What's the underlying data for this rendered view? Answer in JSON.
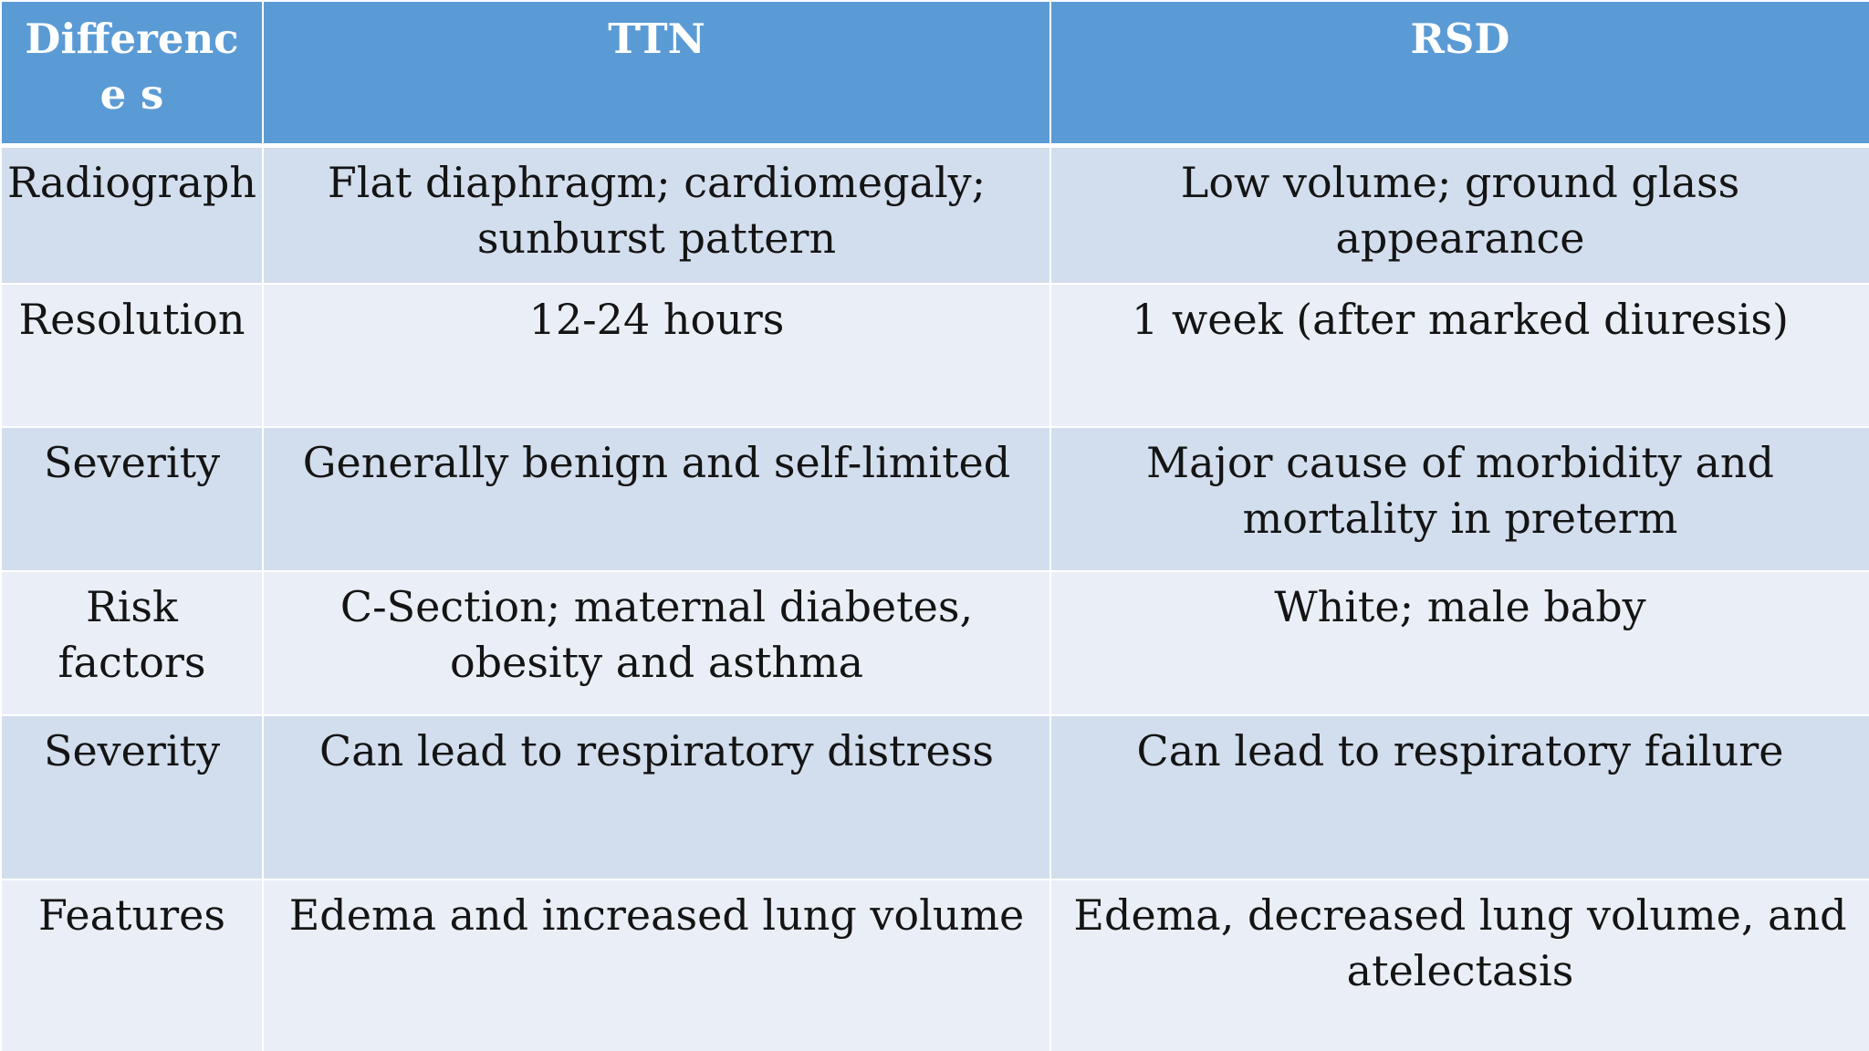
{
  "table": {
    "headers": [
      "Difference s",
      "TTN",
      "RSD"
    ],
    "rows": [
      [
        "Radiograph",
        "Flat diaphragm; cardiomegaly; sunburst pattern",
        "Low volume; ground glass appearance"
      ],
      [
        "Resolution",
        "12-24 hours",
        "1 week (after marked diuresis)"
      ],
      [
        "Severity",
        "Generally benign and self-limited",
        "Major cause of morbidity and mortality in preterm"
      ],
      [
        "Risk factors",
        "C-Section; maternal diabetes, obesity and asthma",
        "White; male baby"
      ],
      [
        "Severity",
        "Can lead to respiratory distress",
        "Can lead to respiratory failure"
      ],
      [
        "Features",
        "Edema and increased lung volume",
        "Edema, decreased lung volume, and atelectasis"
      ]
    ]
  },
  "colors": {
    "header_bg": "#5b9bd5",
    "row_odd_bg": "#d2deed",
    "row_even_bg": "#eaeff7",
    "header_text": "#ffffff",
    "body_text": "#141414"
  }
}
